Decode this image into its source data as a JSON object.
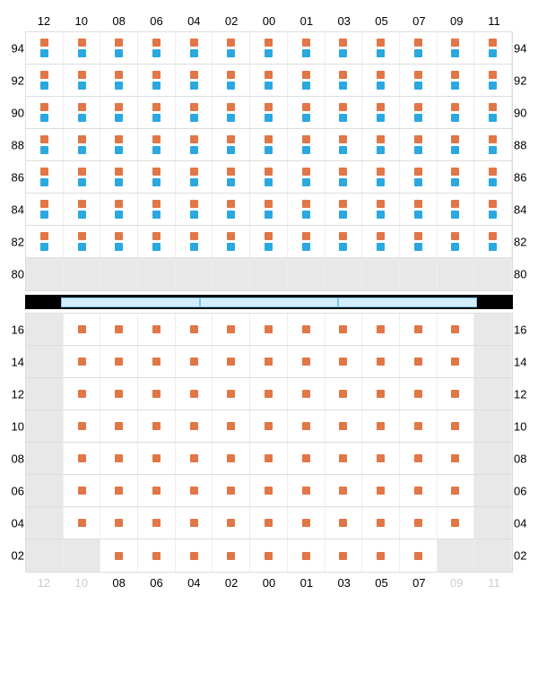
{
  "columnLabels": [
    "12",
    "10",
    "08",
    "06",
    "04",
    "02",
    "00",
    "01",
    "03",
    "05",
    "07",
    "09",
    "11"
  ],
  "colors": {
    "orange": "#e17646",
    "blue": "#2aa8e0",
    "cellBorder": "#eeeeee",
    "rowBorder": "#dddddd",
    "emptyCell": "#e8e8e8",
    "dividerBg": "#000000",
    "dividerSeg": "#d4edfc",
    "dividerSegBorder": "#7ac5ec"
  },
  "layout": {
    "cellHeight": 36,
    "dotSize": 9,
    "nCols": 13
  },
  "upper": {
    "rowLabels": [
      "94",
      "92",
      "90",
      "88",
      "86",
      "84",
      "82",
      "80"
    ],
    "rows": [
      {
        "label": "94",
        "cells": [
          "ob",
          "ob",
          "ob",
          "ob",
          "ob",
          "ob",
          "ob",
          "ob",
          "ob",
          "ob",
          "ob",
          "ob",
          "ob"
        ]
      },
      {
        "label": "92",
        "cells": [
          "ob",
          "ob",
          "ob",
          "ob",
          "ob",
          "ob",
          "ob",
          "ob",
          "ob",
          "ob",
          "ob",
          "ob",
          "ob"
        ]
      },
      {
        "label": "90",
        "cells": [
          "ob",
          "ob",
          "ob",
          "ob",
          "ob",
          "ob",
          "ob",
          "ob",
          "ob",
          "ob",
          "ob",
          "ob",
          "ob"
        ]
      },
      {
        "label": "88",
        "cells": [
          "ob",
          "ob",
          "ob",
          "ob",
          "ob",
          "ob",
          "ob",
          "ob",
          "ob",
          "ob",
          "ob",
          "ob",
          "ob"
        ]
      },
      {
        "label": "86",
        "cells": [
          "ob",
          "ob",
          "ob",
          "ob",
          "ob",
          "ob",
          "ob",
          "ob",
          "ob",
          "ob",
          "ob",
          "ob",
          "ob"
        ]
      },
      {
        "label": "84",
        "cells": [
          "ob",
          "ob",
          "ob",
          "ob",
          "ob",
          "ob",
          "ob",
          "ob",
          "ob",
          "ob",
          "ob",
          "ob",
          "ob"
        ]
      },
      {
        "label": "82",
        "cells": [
          "ob",
          "ob",
          "ob",
          "ob",
          "ob",
          "ob",
          "ob",
          "ob",
          "ob",
          "ob",
          "ob",
          "ob",
          "ob"
        ]
      },
      {
        "label": "80",
        "cells": [
          "e",
          "e",
          "e",
          "e",
          "e",
          "e",
          "e",
          "e",
          "e",
          "e",
          "e",
          "e",
          "e"
        ]
      }
    ]
  },
  "dividerSegments": 3,
  "lower": {
    "rowLabels": [
      "16",
      "14",
      "12",
      "10",
      "08",
      "06",
      "04",
      "02"
    ],
    "rows": [
      {
        "label": "16",
        "cells": [
          "e",
          "o",
          "o",
          "o",
          "o",
          "o",
          "o",
          "o",
          "o",
          "o",
          "o",
          "o",
          "e"
        ]
      },
      {
        "label": "14",
        "cells": [
          "e",
          "o",
          "o",
          "o",
          "o",
          "o",
          "o",
          "o",
          "o",
          "o",
          "o",
          "o",
          "e"
        ]
      },
      {
        "label": "12",
        "cells": [
          "e",
          "o",
          "o",
          "o",
          "o",
          "o",
          "o",
          "o",
          "o",
          "o",
          "o",
          "o",
          "e"
        ]
      },
      {
        "label": "10",
        "cells": [
          "e",
          "o",
          "o",
          "o",
          "o",
          "o",
          "o",
          "o",
          "o",
          "o",
          "o",
          "o",
          "e"
        ]
      },
      {
        "label": "08",
        "cells": [
          "e",
          "o",
          "o",
          "o",
          "o",
          "o",
          "o",
          "o",
          "o",
          "o",
          "o",
          "o",
          "e"
        ]
      },
      {
        "label": "06",
        "cells": [
          "e",
          "o",
          "o",
          "o",
          "o",
          "o",
          "o",
          "o",
          "o",
          "o",
          "o",
          "o",
          "e"
        ]
      },
      {
        "label": "04",
        "cells": [
          "e",
          "o",
          "o",
          "o",
          "o",
          "o",
          "o",
          "o",
          "o",
          "o",
          "o",
          "o",
          "e"
        ]
      },
      {
        "label": "02",
        "cells": [
          "e",
          "e",
          "o",
          "o",
          "o",
          "o",
          "o",
          "o",
          "o",
          "o",
          "o",
          "e",
          "e"
        ]
      }
    ],
    "bottomDimCols": [
      0,
      1,
      11,
      12
    ]
  }
}
